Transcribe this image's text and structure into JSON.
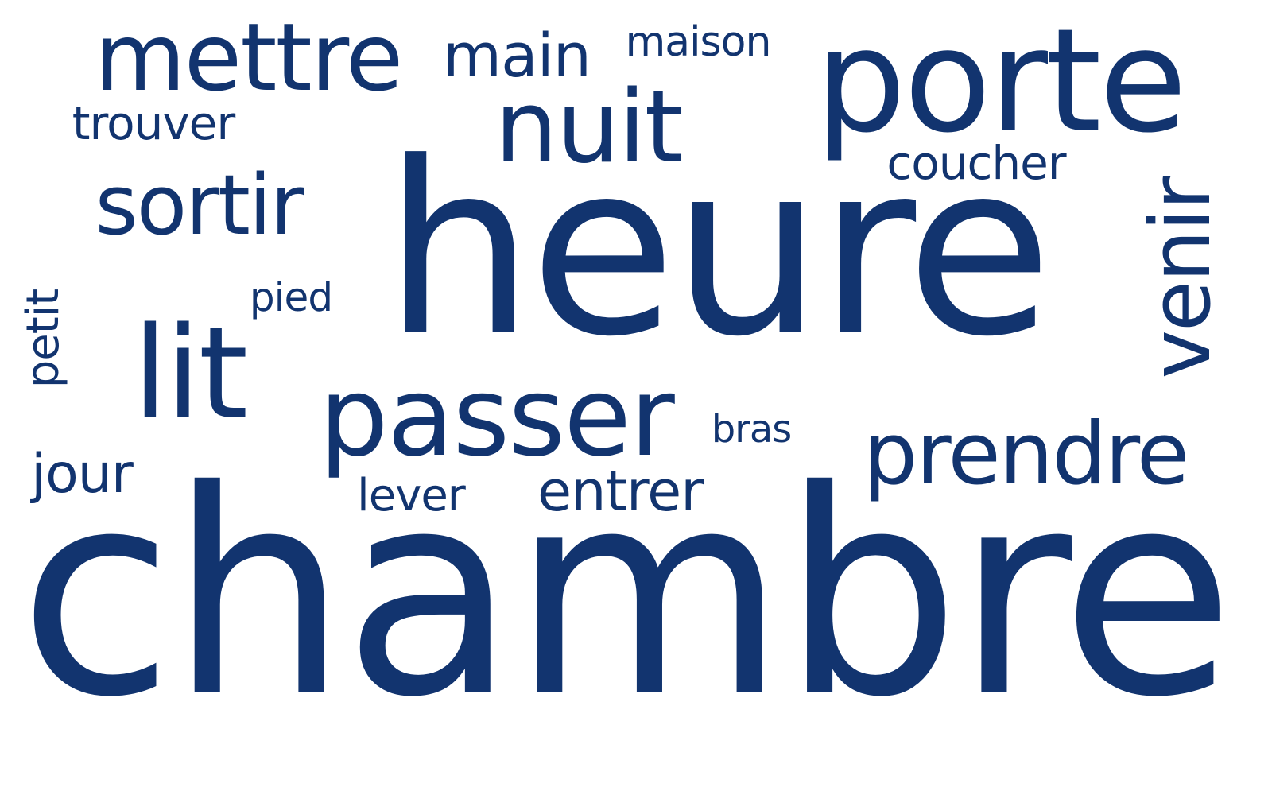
{
  "style": {
    "background": "#ffffff",
    "word_color": "#12346f"
  },
  "words": {
    "chambre": "chambre",
    "heure": "heure",
    "porte": "porte",
    "mettre": "mettre",
    "passer": "passer",
    "nuit": "nuit",
    "lit": "lit",
    "sortir": "sortir",
    "prendre": "prendre",
    "venir": "venir",
    "main": "main",
    "entrer": "entrer",
    "coucher": "coucher",
    "maison": "maison",
    "trouver": "trouver",
    "jour": "jour",
    "petit": "petit",
    "pied": "pied",
    "lever": "lever",
    "bras": "bras"
  }
}
